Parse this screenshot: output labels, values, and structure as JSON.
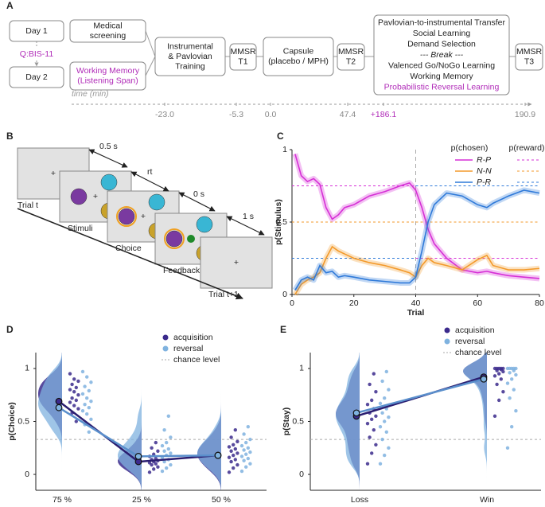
{
  "panel_labels": [
    "A",
    "B",
    "C",
    "D",
    "E"
  ],
  "timeline": {
    "day1": "Day 1",
    "questionnaire": "Q:BIS-11",
    "day2": "Day 2",
    "screening": [
      "Medical",
      "screening"
    ],
    "working_memory": [
      "Working Memory",
      "(Listening Span)"
    ],
    "training": [
      "Instrumental",
      "& Pavlovian",
      "Training"
    ],
    "mmsr1": [
      "MMSR",
      "T1"
    ],
    "capsule": [
      "Capsule",
      "(placebo / MPH)"
    ],
    "mmsr2": [
      "MMSR",
      "T2"
    ],
    "tasks": [
      "Pavlovian-to-instrumental Transfer",
      "Social Learning",
      "Demand Selection",
      "--- Break ---",
      "Valenced Go/NoGo Learning",
      "Working Memory",
      "Probabilistic Reversal Learning"
    ],
    "mmsr3": [
      "MMSR",
      "T3"
    ],
    "axis_label": "time (min)",
    "times": [
      "-23.0",
      "-5.3",
      "0.0",
      "47.4",
      "+186.1",
      "190.9"
    ]
  },
  "task": {
    "durations": [
      "0.5 s",
      "rt",
      "0 s",
      "1 s"
    ],
    "screens": [
      "Trial t",
      "Stimuli",
      "Choice",
      "Feedback",
      "Trial t+1"
    ]
  },
  "chart_data": [
    {
      "type": "line",
      "xlabel": "Trial",
      "ylabel": "p(Stimulus)",
      "legend_titles": [
        "p(chosen)",
        "p(reward)"
      ],
      "legend": "upper right",
      "x": [
        1,
        3,
        5,
        7,
        9,
        11,
        13,
        15,
        17,
        20,
        25,
        30,
        35,
        38,
        40,
        42,
        44,
        46,
        50,
        55,
        60,
        63,
        65,
        70,
        75,
        80
      ],
      "reversal_trial": 40,
      "series": [
        {
          "name": "R-P",
          "color": "#d62fd6",
          "reward": [
            0.75,
            0.25
          ],
          "values": [
            0.97,
            0.82,
            0.78,
            0.8,
            0.76,
            0.6,
            0.52,
            0.55,
            0.6,
            0.62,
            0.68,
            0.71,
            0.75,
            0.77,
            0.72,
            0.6,
            0.45,
            0.35,
            0.25,
            0.17,
            0.15,
            0.16,
            0.15,
            0.13,
            0.12,
            0.11
          ]
        },
        {
          "name": "N-N",
          "color": "#f39a2b",
          "reward": [
            0.5,
            0.5
          ],
          "values": [
            0,
            0.07,
            0.1,
            0.12,
            0.15,
            0.25,
            0.33,
            0.3,
            0.28,
            0.25,
            0.22,
            0.2,
            0.17,
            0.15,
            0.12,
            0.2,
            0.25,
            0.22,
            0.2,
            0.17,
            0.24,
            0.27,
            0.2,
            0.17,
            0.17,
            0.18
          ]
        },
        {
          "name": "P-R",
          "color": "#2f7ad9",
          "reward": [
            0.25,
            0.75
          ],
          "values": [
            0.03,
            0.1,
            0.12,
            0.1,
            0.2,
            0.15,
            0.16,
            0.12,
            0.13,
            0.12,
            0.1,
            0.09,
            0.08,
            0.08,
            0.12,
            0.3,
            0.5,
            0.62,
            0.7,
            0.68,
            0.62,
            0.6,
            0.63,
            0.68,
            0.72,
            0.7
          ]
        }
      ],
      "xlim": [
        0,
        80
      ],
      "ylim": [
        0,
        1
      ],
      "xticks": [
        0,
        20,
        40,
        60,
        80
      ],
      "yticks": [
        0,
        0.5,
        1
      ]
    },
    {
      "type": "raincloud",
      "ylabel": "p(Choice)",
      "legend": "upper right",
      "categories": [
        "75 %",
        "25 %",
        "50 %"
      ],
      "ylim": [
        -0.15,
        1.15
      ],
      "yticks": [
        0,
        0.5,
        1
      ],
      "chance_level": 0.33,
      "chance_label": "chance level",
      "series": [
        {
          "name": "acquisition",
          "color": "#3b2a8c",
          "means": [
            0.69,
            0.12,
            0.18
          ],
          "points": [
            [
              0.95,
              0.9,
              0.88,
              0.85,
              0.82,
              0.8,
              0.78,
              0.75,
              0.72,
              0.7,
              0.68,
              0.65,
              0.62,
              0.58,
              0.5
            ],
            [
              0.02,
              0.05,
              0.07,
              0.09,
              0.1,
              0.11,
              0.12,
              0.13,
              0.14,
              0.15,
              0.17,
              0.19,
              0.22,
              0.25,
              0.3
            ],
            [
              0.02,
              0.06,
              0.09,
              0.12,
              0.14,
              0.16,
              0.18,
              0.2,
              0.22,
              0.24,
              0.26,
              0.28,
              0.31,
              0.35,
              0.42
            ]
          ]
        },
        {
          "name": "reversal",
          "color": "#7fb2df",
          "means": [
            0.63,
            0.17,
            0.18
          ],
          "points": [
            [
              0.97,
              0.92,
              0.87,
              0.83,
              0.79,
              0.76,
              0.72,
              0.69,
              0.66,
              0.63,
              0.6,
              0.57,
              0.52,
              0.47,
              0.4
            ],
            [
              0.03,
              0.06,
              0.09,
              0.12,
              0.14,
              0.16,
              0.18,
              0.2,
              0.22,
              0.24,
              0.27,
              0.3,
              0.35,
              0.42,
              0.55
            ],
            [
              0.03,
              0.07,
              0.1,
              0.13,
              0.15,
              0.17,
              0.19,
              0.21,
              0.23,
              0.25,
              0.27,
              0.3,
              0.33,
              0.38,
              0.45
            ]
          ]
        }
      ]
    },
    {
      "type": "raincloud",
      "ylabel": "p(Stay)",
      "legend": "upper right",
      "categories": [
        "Loss",
        "Win"
      ],
      "ylim": [
        -0.15,
        1.15
      ],
      "yticks": [
        0,
        0.5,
        1
      ],
      "chance_level": 0.33,
      "chance_label": "chance level",
      "series": [
        {
          "name": "acquisition",
          "color": "#3b2a8c",
          "means": [
            0.55,
            0.92
          ],
          "points": [
            [
              0.1,
              0.2,
              0.28,
              0.35,
              0.42,
              0.48,
              0.52,
              0.55,
              0.58,
              0.62,
              0.66,
              0.7,
              0.78,
              0.85,
              0.95
            ],
            [
              0.55,
              0.7,
              0.78,
              0.85,
              0.9,
              0.93,
              0.95,
              0.97,
              0.98,
              0.99,
              1,
              1,
              1,
              1,
              1
            ]
          ]
        },
        {
          "name": "reversal",
          "color": "#7fb2df",
          "means": [
            0.58,
            0.9
          ],
          "points": [
            [
              0.1,
              0.18,
              0.25,
              0.33,
              0.4,
              0.45,
              0.5,
              0.54,
              0.58,
              0.62,
              0.67,
              0.72,
              0.8,
              0.88,
              0.97
            ],
            [
              0.25,
              0.45,
              0.6,
              0.72,
              0.8,
              0.86,
              0.9,
              0.94,
              0.96,
              0.98,
              1,
              1,
              1,
              1,
              1
            ]
          ]
        }
      ]
    }
  ]
}
